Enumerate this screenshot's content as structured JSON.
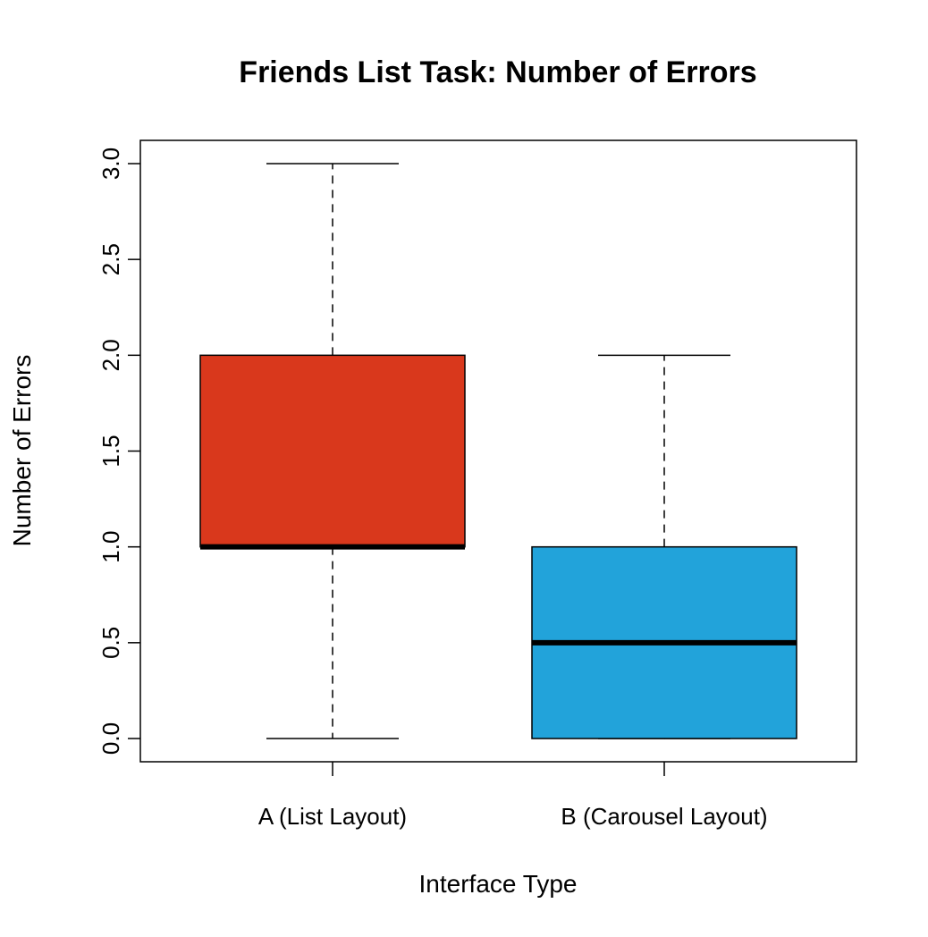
{
  "chart_data": {
    "type": "boxplot",
    "title": "Friends List Task: Number of Errors",
    "xlabel": "Interface Type",
    "ylabel": "Number of Errors",
    "ylim": [
      0,
      3
    ],
    "yticks": [
      "0.0",
      "0.5",
      "1.0",
      "1.5",
      "2.0",
      "2.5",
      "3.0"
    ],
    "categories": [
      "A (List Layout)",
      "B (Carousel Layout)"
    ],
    "boxes": [
      {
        "min": 0,
        "q1": 1,
        "median": 1,
        "q3": 2,
        "max": 3,
        "color": "#d9381c"
      },
      {
        "min": 0,
        "q1": 0,
        "median": 0.5,
        "q3": 1,
        "max": 2,
        "color": "#22a3da"
      }
    ],
    "grid": false,
    "legend": "none"
  }
}
